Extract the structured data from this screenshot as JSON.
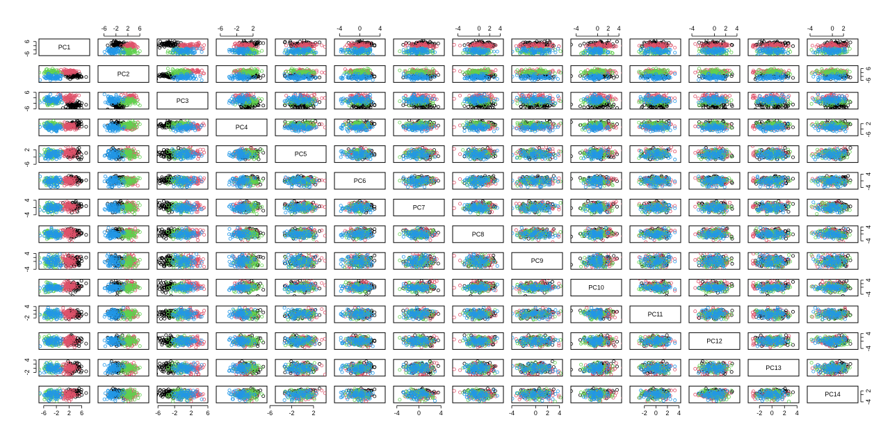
{
  "chart_data": {
    "type": "scatter",
    "title": "",
    "variables": [
      "PC1",
      "PC2",
      "PC3",
      "PC4",
      "PC5",
      "PC6",
      "PC7",
      "PC8",
      "PC9",
      "PC10",
      "PC11",
      "PC12",
      "PC13",
      "PC14"
    ],
    "ranges": [
      [
        -7.5,
        8.5
      ],
      [
        -8,
        9
      ],
      [
        -6.2,
        6
      ],
      [
        -7,
        5.4
      ],
      [
        -5,
        4.3
      ],
      [
        -5,
        5
      ],
      [
        -4.6,
        4.6
      ],
      [
        -5,
        4.6
      ],
      [
        -4,
        4.5
      ],
      [
        -5,
        4.5
      ],
      [
        -4.5,
        4.3
      ],
      [
        -4.5,
        4.5
      ],
      [
        -3.8,
        4.3
      ],
      [
        -4.5,
        4.6
      ]
    ],
    "tick_values": [
      [
        -6,
        -2,
        2,
        6
      ],
      [
        -6,
        -2,
        2,
        6
      ],
      [
        -6,
        -2,
        2,
        6
      ],
      [
        -6,
        -2,
        2
      ],
      [
        -6,
        -2,
        2
      ],
      [
        -4,
        0,
        4
      ],
      [
        -4,
        0,
        4
      ],
      [
        -4,
        0,
        2,
        4
      ],
      [
        -4,
        0,
        2,
        4
      ],
      [
        -4,
        0,
        2,
        4
      ],
      [
        -2,
        0,
        2,
        4
      ],
      [
        -4,
        0,
        2,
        4
      ],
      [
        -2,
        0,
        2,
        4
      ],
      [
        -4,
        0,
        2
      ]
    ],
    "tick_labels": [
      [
        "-6",
        "-2",
        "2",
        "6"
      ],
      [
        "-6",
        "-2",
        "2",
        "6"
      ],
      [
        "-6",
        "-2",
        "2",
        "6"
      ],
      [
        "-6",
        "-2",
        "2"
      ],
      [
        "-6",
        "-2",
        "2"
      ],
      [
        "-4",
        "0",
        "4"
      ],
      [
        "-4",
        "0",
        "4"
      ],
      [
        "-4",
        "0",
        "2",
        "4"
      ],
      [
        "-4",
        "0",
        "2",
        "4"
      ],
      [
        "-4",
        "0",
        "2",
        "4"
      ],
      [
        "-2",
        "0",
        "2",
        "4"
      ],
      [
        "-4",
        "0",
        "2",
        "4"
      ],
      [
        "-2",
        "0",
        "2",
        "4"
      ],
      [
        "-4",
        "0",
        "2"
      ]
    ],
    "groups": [
      {
        "color": "#000000",
        "centers": [
          3.5,
          -1.5,
          -3.5,
          1.2,
          0,
          0.5,
          0.5,
          0.5,
          0.3,
          0.5,
          0,
          0.3,
          0.3,
          0.2
        ],
        "sds": [
          1.8,
          1.6,
          1.0,
          1.2,
          1.1,
          1.3,
          1.1,
          1.1,
          1.1,
          1.2,
          1.1,
          1.1,
          1.0,
          1.1
        ]
      },
      {
        "color": "#DF536B",
        "centers": [
          2.0,
          2.5,
          2.0,
          0,
          0.3,
          0.3,
          0.3,
          0.3,
          0,
          0.3,
          0.3,
          0,
          0,
          0
        ]
      },
      {
        "color": "#61D04F",
        "centers": [
          -3.5,
          2.5,
          -0.5,
          0.8,
          0,
          0,
          0,
          0,
          0,
          0,
          0,
          0,
          0,
          0
        ]
      },
      {
        "color": "#2297E6",
        "centers": [
          -3.0,
          -3.0,
          0.5,
          -1.0,
          -0.5,
          -0.3,
          -0.3,
          -0.3,
          0,
          0,
          0,
          0,
          0,
          0
        ]
      }
    ],
    "points_per_group": 70,
    "grid": false,
    "legend": "none"
  }
}
